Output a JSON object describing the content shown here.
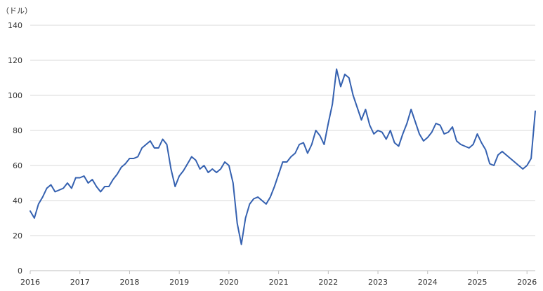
{
  "chart_data": {
    "type": "line",
    "unit_label": "（ドル）",
    "ylim": [
      0,
      140
    ],
    "y_ticks": [
      0,
      20,
      40,
      60,
      80,
      100,
      120,
      140
    ],
    "x_ticks": [
      "2016",
      "2017",
      "2018",
      "2019",
      "2020",
      "2021",
      "2022",
      "2023",
      "2024",
      "2025",
      "2026"
    ],
    "xlim": [
      "2016-01",
      "2026-03"
    ],
    "grid": true,
    "colors": {
      "line": "#3561b0",
      "grid": "#d9d9d9",
      "axis": "#bfbfbf"
    },
    "series": [
      {
        "x": [
          "2016-01",
          "2016-02",
          "2016-03",
          "2016-04",
          "2016-05",
          "2016-06",
          "2016-07",
          "2016-08",
          "2016-09",
          "2016-10",
          "2016-11",
          "2016-12",
          "2017-01",
          "2017-02",
          "2017-03",
          "2017-04",
          "2017-05",
          "2017-06",
          "2017-07",
          "2017-08",
          "2017-09",
          "2017-10",
          "2017-11",
          "2017-12",
          "2018-01",
          "2018-02",
          "2018-03",
          "2018-04",
          "2018-05",
          "2018-06",
          "2018-07",
          "2018-08",
          "2018-09",
          "2018-10",
          "2018-11",
          "2018-12",
          "2019-01",
          "2019-02",
          "2019-03",
          "2019-04",
          "2019-05",
          "2019-06",
          "2019-07",
          "2019-08",
          "2019-09",
          "2019-10",
          "2019-11",
          "2019-12",
          "2020-01",
          "2020-02",
          "2020-03",
          "2020-04",
          "2020-05",
          "2020-06",
          "2020-07",
          "2020-08",
          "2020-09",
          "2020-10",
          "2020-11",
          "2020-12",
          "2021-01",
          "2021-02",
          "2021-03",
          "2021-04",
          "2021-05",
          "2021-06",
          "2021-07",
          "2021-08",
          "2021-09",
          "2021-10",
          "2021-11",
          "2021-12",
          "2022-01",
          "2022-02",
          "2022-03",
          "2022-04",
          "2022-05",
          "2022-06",
          "2022-07",
          "2022-08",
          "2022-09",
          "2022-10",
          "2022-11",
          "2022-12",
          "2023-01",
          "2023-02",
          "2023-03",
          "2023-04",
          "2023-05",
          "2023-06",
          "2023-07",
          "2023-08",
          "2023-09",
          "2023-10",
          "2023-11",
          "2023-12",
          "2024-01",
          "2024-02",
          "2024-03",
          "2024-04",
          "2024-05",
          "2024-06",
          "2024-07",
          "2024-08",
          "2024-09",
          "2024-10",
          "2024-11",
          "2024-12",
          "2025-01",
          "2025-02",
          "2025-03",
          "2025-04",
          "2025-05",
          "2025-06",
          "2025-07",
          "2025-08",
          "2025-09",
          "2025-10",
          "2025-11",
          "2025-12",
          "2026-01",
          "2026-02",
          "2026-03"
        ],
        "values": [
          34,
          30,
          38,
          42,
          47,
          49,
          45,
          46,
          47,
          50,
          47,
          53,
          53,
          54,
          50,
          52,
          48,
          45,
          48,
          48,
          52,
          55,
          59,
          61,
          64,
          64,
          65,
          70,
          72,
          74,
          70,
          70,
          75,
          72,
          58,
          48,
          54,
          57,
          61,
          65,
          63,
          58,
          60,
          56,
          58,
          56,
          58,
          62,
          60,
          50,
          27,
          15,
          30,
          38,
          41,
          42,
          40,
          38,
          42,
          48,
          55,
          62,
          62,
          65,
          67,
          72,
          73,
          67,
          72,
          80,
          77,
          72,
          84,
          95,
          115,
          105,
          112,
          110,
          100,
          93,
          86,
          92,
          83,
          78,
          80,
          79,
          75,
          80,
          73,
          71,
          78,
          84,
          92,
          85,
          78,
          74,
          76,
          79,
          84,
          83,
          78,
          79,
          82,
          74,
          72,
          71,
          70,
          72,
          78,
          73,
          69,
          61,
          60,
          66,
          68,
          66,
          64,
          62,
          60,
          58,
          60,
          64,
          91
        ]
      }
    ]
  }
}
